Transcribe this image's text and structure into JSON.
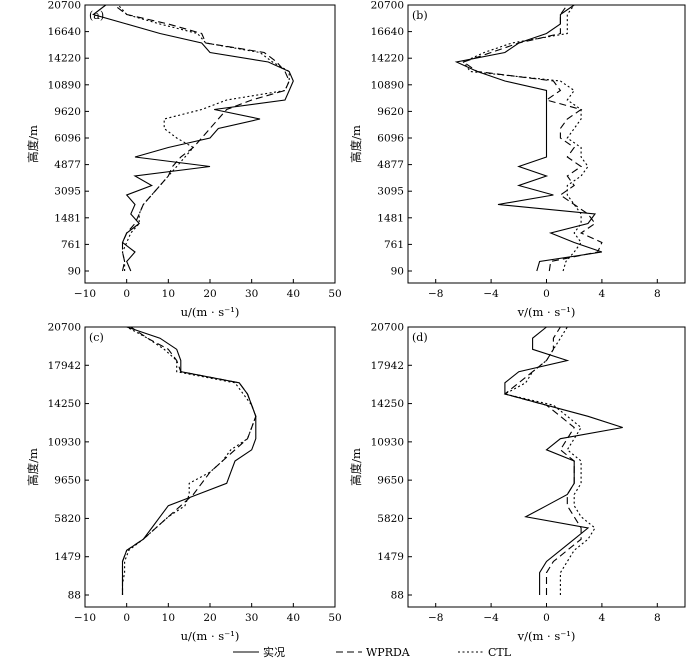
{
  "chart_data": [
    {
      "panel": "(a)",
      "type": "line",
      "ylabel": "高度/m",
      "xlabel": "u/(m · s⁻¹)",
      "xlim": [
        -10,
        50
      ],
      "xticks": [
        -10,
        0,
        10,
        20,
        30,
        40,
        50
      ],
      "ylevels": [
        "90",
        "761",
        "1481",
        "3095",
        "4877",
        "6096",
        "9620",
        "10890",
        "14220",
        "16640",
        "20700"
      ],
      "series": [
        {
          "name": "实况",
          "style": "solid",
          "values": [
            1,
            0,
            2,
            -1,
            0,
            3,
            1,
            2,
            0,
            6,
            2,
            20,
            2,
            10,
            20,
            22,
            32,
            21,
            38,
            39,
            40,
            39,
            34,
            20,
            18,
            8,
            0,
            -8,
            -5
          ]
        },
        {
          "name": "WPRDA",
          "style": "dash",
          "values": [
            -1,
            -0.5,
            -1,
            -1,
            0,
            2,
            3,
            4,
            6,
            8,
            10,
            11,
            13,
            16,
            18,
            20,
            22,
            24,
            30,
            38,
            39,
            38,
            36,
            33,
            19,
            18,
            10,
            0,
            -3
          ]
        },
        {
          "name": "CTL",
          "style": "dot",
          "values": [
            -0.5,
            -0.5,
            -1,
            0,
            1,
            3,
            3,
            4,
            6,
            8,
            10,
            12,
            14,
            16,
            12,
            9,
            9,
            18,
            24,
            38,
            39,
            39,
            35,
            32,
            19,
            17,
            8,
            0,
            -2
          ]
        }
      ]
    },
    {
      "panel": "(b)",
      "type": "line",
      "ylabel": "高度/m",
      "xlabel": "v/(m · s⁻¹)",
      "xlim": [
        -10,
        10
      ],
      "xticks": [
        -8,
        -4,
        0,
        4,
        8
      ],
      "ylevels": [
        "90",
        "761",
        "1481",
        "3095",
        "4877",
        "6096",
        "9620",
        "10890",
        "14220",
        "16640",
        "20700"
      ],
      "series": [
        {
          "name": "实况",
          "style": "solid",
          "values": [
            -0.7,
            -0.5,
            4,
            2,
            0.3,
            3,
            3.5,
            -3.5,
            0.5,
            -2,
            0,
            -2,
            0,
            0,
            0,
            0,
            0,
            0,
            0,
            0,
            -3,
            -5,
            -6.5,
            -3,
            -2,
            0,
            1,
            1,
            2
          ]
        },
        {
          "name": "WPRDA",
          "style": "dash",
          "values": [
            0.2,
            0.3,
            3.7,
            4,
            2.5,
            3.5,
            3,
            2,
            1,
            2,
            1.5,
            2.5,
            1.5,
            2,
            1,
            1,
            1.5,
            2.5,
            0,
            1,
            0.5,
            -5,
            -6,
            -4,
            -2,
            1,
            1,
            1,
            1.5
          ]
        },
        {
          "name": "CTL",
          "style": "dot",
          "values": [
            1.2,
            1.4,
            2,
            2.5,
            2,
            2.5,
            2.5,
            2,
            1.5,
            1.5,
            2.5,
            3,
            2.5,
            2.5,
            1.5,
            2,
            2.5,
            2.5,
            1.5,
            2,
            1,
            -5.5,
            -6,
            -4.5,
            -2.5,
            1.5,
            1.5,
            1.5,
            2
          ]
        }
      ]
    },
    {
      "panel": "(c)",
      "type": "line",
      "ylabel": "高度/m",
      "xlabel": "u/(m · s⁻¹)",
      "xlim": [
        -10,
        50
      ],
      "xticks": [
        -10,
        0,
        10,
        20,
        30,
        40,
        50
      ],
      "ylevels": [
        "88",
        "1479",
        "5820",
        "9650",
        "10930",
        "14250",
        "17942",
        "20700"
      ],
      "series": [
        {
          "name": "实况",
          "style": "solid",
          "values": [
            -1,
            -1,
            -1,
            -1,
            0,
            4,
            6,
            8,
            10,
            17,
            24,
            25,
            26,
            30,
            31,
            31,
            31,
            30,
            29,
            27,
            13,
            13,
            12,
            8,
            0
          ]
        },
        {
          "name": "WPRDA",
          "style": "dash",
          "values": [
            -1,
            -1,
            -1,
            -1,
            0,
            4,
            7,
            10,
            13,
            16,
            18,
            20,
            23,
            26,
            29,
            30,
            31,
            30,
            29,
            27,
            13,
            12,
            10,
            5,
            1
          ]
        },
        {
          "name": "CTL",
          "style": "dot",
          "values": [
            -1,
            -1,
            -0.5,
            -0.5,
            0.5,
            4,
            7,
            10,
            14,
            15,
            15,
            20,
            23,
            25,
            29,
            30,
            31,
            30,
            28,
            26,
            12,
            12,
            9,
            5,
            0
          ]
        }
      ]
    },
    {
      "panel": "(d)",
      "type": "line",
      "ylabel": "高度/m",
      "xlabel": "v/(m · s⁻¹)",
      "xlim": [
        -10,
        10
      ],
      "xticks": [
        -8,
        -4,
        0,
        4,
        8
      ],
      "ylevels": [
        "88",
        "1479",
        "5820",
        "9650",
        "10930",
        "14250",
        "17942",
        "20700"
      ],
      "series": [
        {
          "name": "实况",
          "style": "solid",
          "values": [
            -0.5,
            -0.5,
            -0.5,
            0,
            1,
            2,
            3,
            -1.5,
            0,
            1.5,
            2,
            2,
            2,
            0,
            1,
            5.5,
            3,
            0,
            -3,
            -3,
            -2,
            1.5,
            -1,
            -1,
            0
          ]
        },
        {
          "name": "WPRDA",
          "style": "dash",
          "values": [
            0,
            0,
            0,
            0.5,
            1.5,
            2.5,
            2.5,
            2,
            1.5,
            1.5,
            2,
            2,
            2,
            1,
            1.5,
            2,
            1,
            0,
            -3,
            -2,
            -1,
            0,
            0.5,
            0.5,
            1
          ]
        },
        {
          "name": "CTL",
          "style": "dot",
          "values": [
            1,
            1,
            1,
            1.5,
            2,
            3,
            3.5,
            2.5,
            2,
            2,
            2.5,
            2.5,
            2.5,
            1.5,
            2,
            2.5,
            1.5,
            0.5,
            -3,
            -1.5,
            -1,
            0,
            0.5,
            1,
            1.5
          ]
        }
      ]
    }
  ],
  "legend": [
    {
      "label": "实况",
      "style": "solid"
    },
    {
      "label": "WPRDA",
      "style": "dash"
    },
    {
      "label": "CTL",
      "style": "dot"
    }
  ]
}
